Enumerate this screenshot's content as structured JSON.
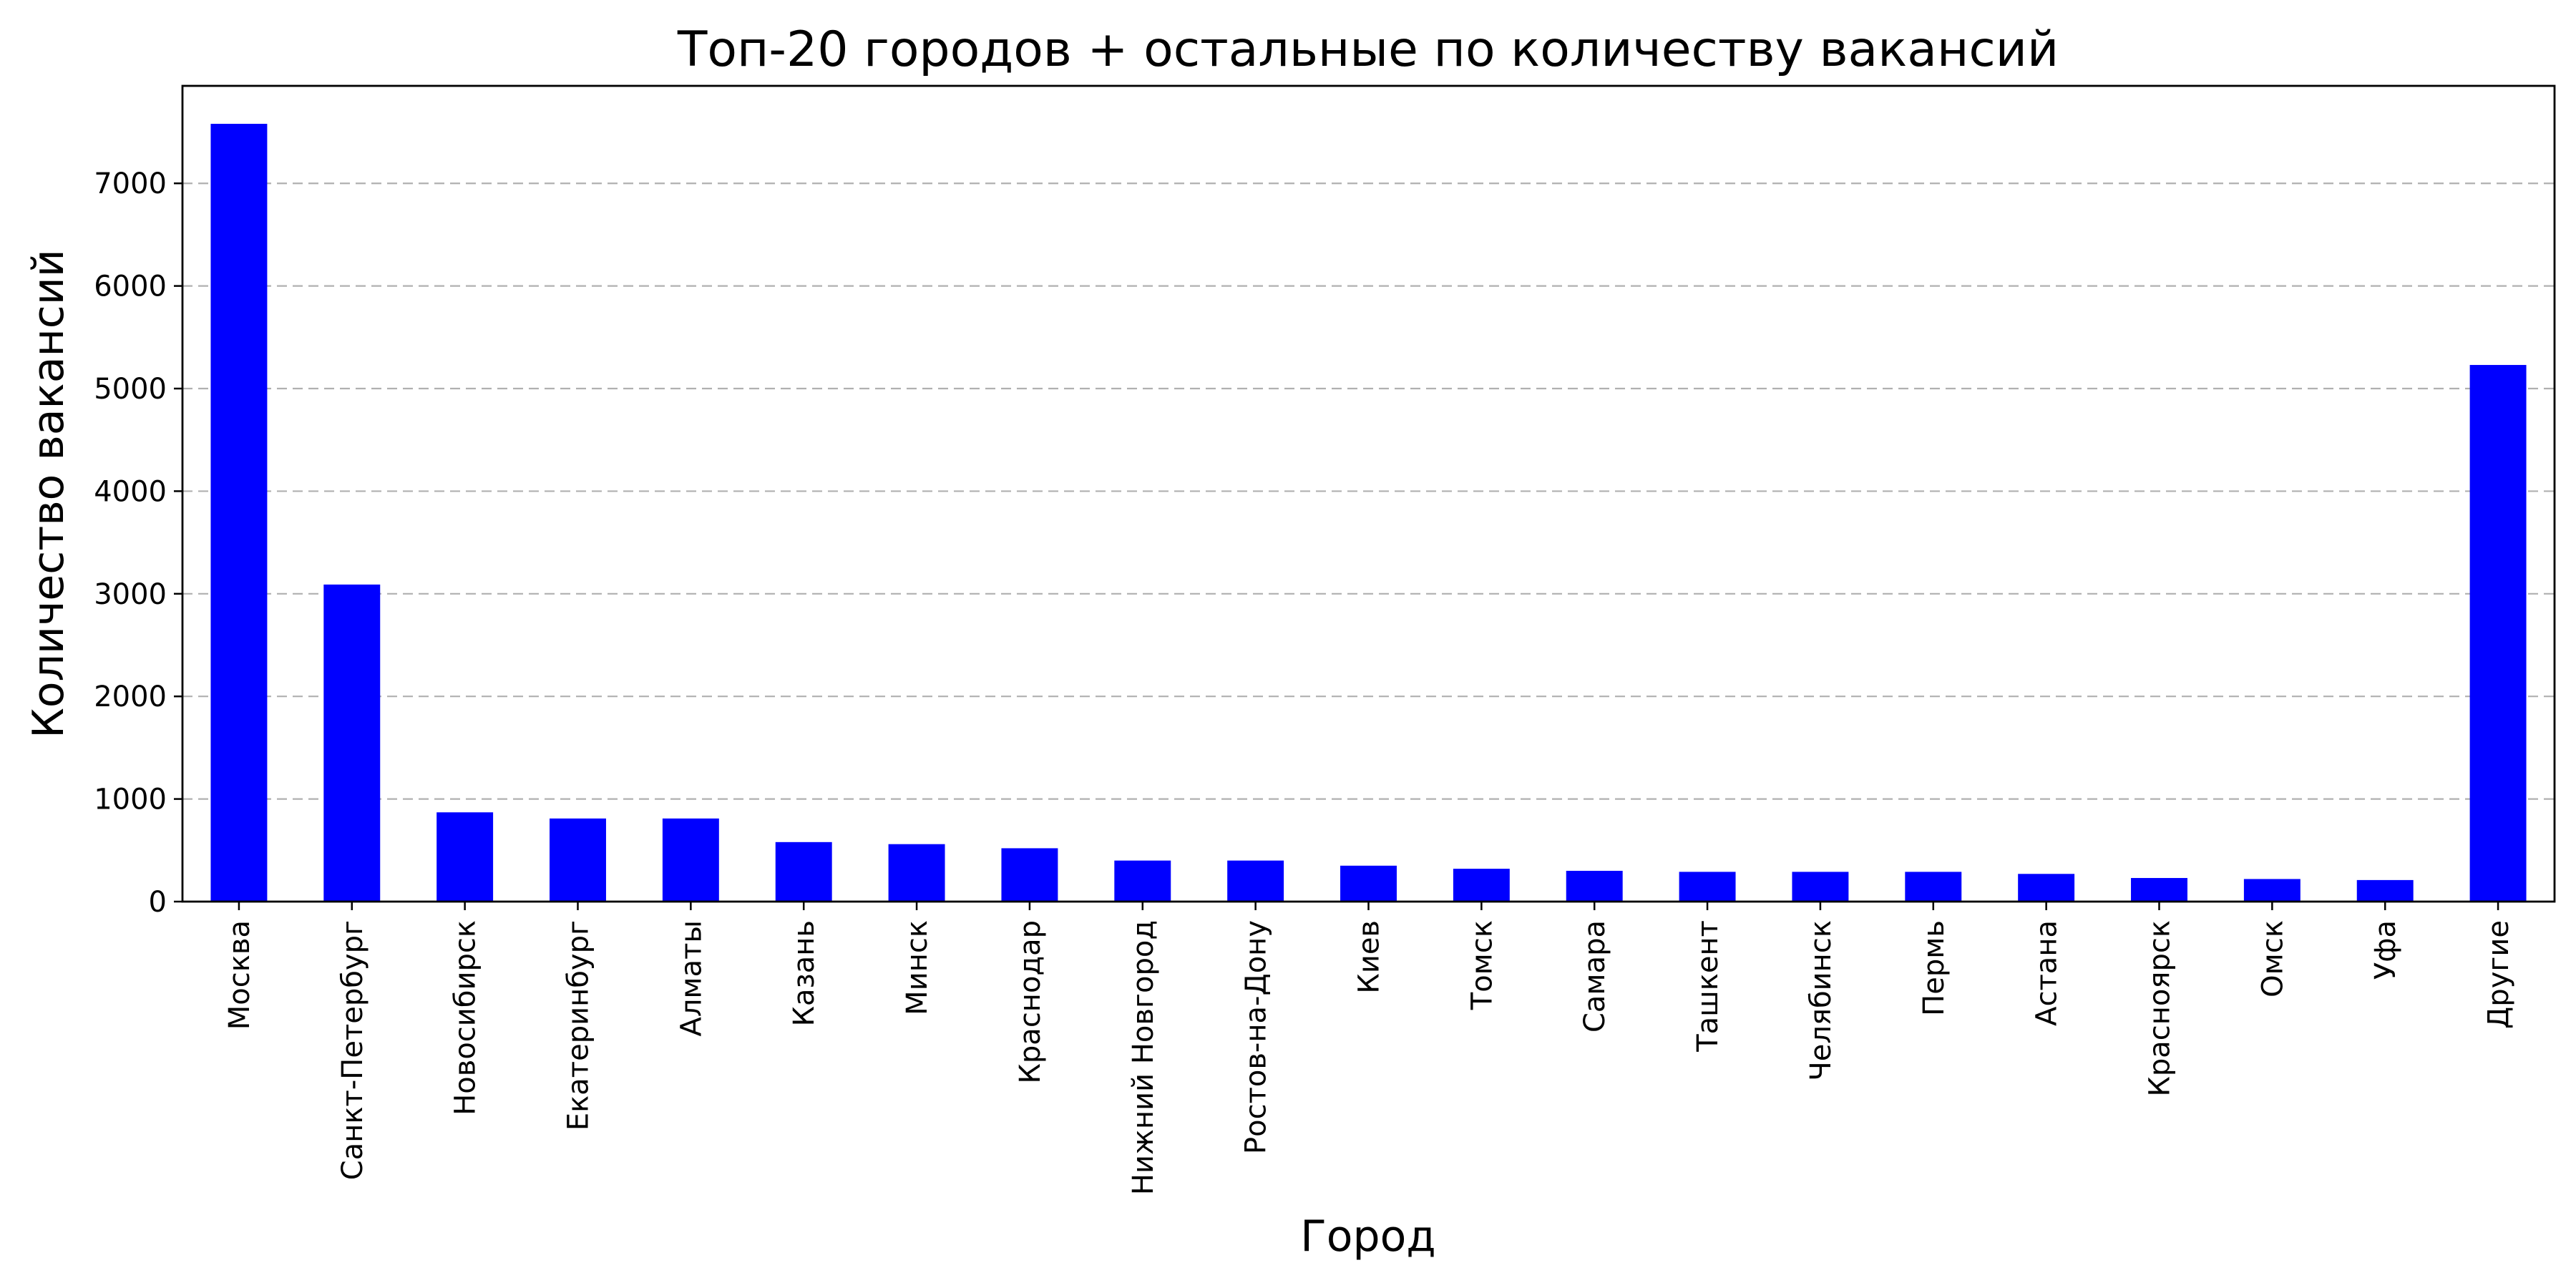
{
  "chart_data": {
    "type": "bar",
    "title": "Топ-20 городов + остальные по количеству вакансий",
    "xlabel": "Город",
    "ylabel": "Количество вакансий",
    "categories": [
      "Москва",
      "Санкт-Петербург",
      "Новосибирск",
      "Екатеринбург",
      "Алматы",
      "Казань",
      "Минск",
      "Краснодар",
      "Нижний Новгород",
      "Ростов-на-Дону",
      "Киев",
      "Томск",
      "Самара",
      "Ташкент",
      "Челябинск",
      "Пермь",
      "Астана",
      "Красноярск",
      "Омск",
      "Уфа",
      "Другие"
    ],
    "values": [
      7580,
      3090,
      870,
      810,
      810,
      580,
      560,
      520,
      400,
      400,
      350,
      320,
      300,
      290,
      290,
      290,
      270,
      230,
      220,
      210,
      5230
    ],
    "ylim": [
      0,
      7950
    ],
    "yticks": [
      0,
      1000,
      2000,
      3000,
      4000,
      5000,
      6000,
      7000
    ],
    "grid": "y",
    "bar_color": "#0000ff"
  }
}
